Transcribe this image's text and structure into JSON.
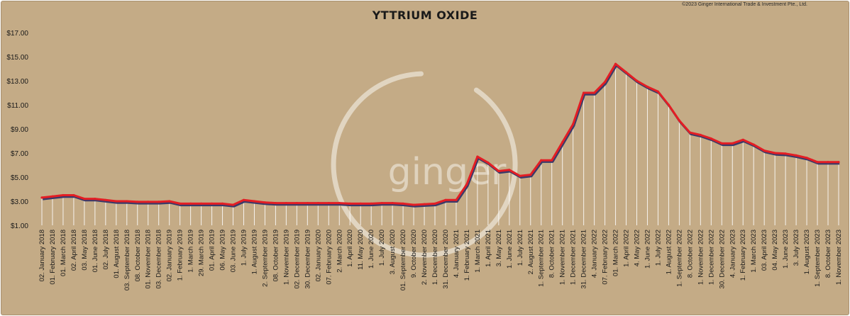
{
  "title": "YTTRIUM OXIDE",
  "copyright": "©2023 Ginger International Trade & Investment Pte., Ltd.",
  "watermark": "ginger",
  "colors": {
    "background": "#c4ab86",
    "line": "#e31e24",
    "shadow": "#3a3a6a",
    "drop_lines": "#ffffff",
    "watermark": "#e6dccb"
  },
  "chart_data": {
    "type": "line",
    "title": "YTTRIUM OXIDE",
    "xlabel": "",
    "ylabel": "",
    "ylim": [
      1,
      17
    ],
    "y_ticks": [
      "$1.00",
      "$3.00",
      "$5.00",
      "$7.00",
      "$9.00",
      "$11.00",
      "$13.00",
      "$15.00",
      "$17.00"
    ],
    "y_tick_values": [
      1,
      3,
      5,
      7,
      9,
      11,
      13,
      15,
      17
    ],
    "grid": false,
    "drop_lines": true,
    "categories": [
      "02. January 2018",
      "01. February 2018",
      "01. March 2018",
      "02. April 2018",
      "03. May 2018",
      "01. June 2018",
      "02. July 2018",
      "01. August 2018",
      "03. September 2018",
      "08. October 2018",
      "01. November 2018",
      "03. December 2018",
      "02. January 2019",
      "1. February 2019",
      "1. March 2019",
      "29. March 2019",
      "01. April 2019",
      "06. May 2019",
      "03. June 2019",
      "1. July 2019",
      "1. August 2019",
      "2. September 2019",
      "08. October 2019",
      "1. November 2019",
      "02. December 2019",
      "30. December 2019",
      "02. January 2020",
      "07. February 2020",
      "2. March 2020",
      "1. April 2020",
      "11. May 2020",
      "1. June 2020",
      "1. July 2020",
      "3. August 2020",
      "01. September 2020",
      "9. October 2020",
      "2. November 2020",
      "1. December 2020",
      "31. December 2020",
      "4. January 2021",
      "1. February 2021",
      "1. March 2021",
      "1. April 2021",
      "3. May 2021",
      "1. June 2021",
      "1. July 2021",
      "2. August 2021",
      "1. September 2021",
      "8. October 2021",
      "1. November 2021",
      "1. December 2021",
      "31. December 2021",
      "4. January 2022",
      "07. February 2022",
      "01. March 2022",
      "1. April 2022",
      "4. May 2022",
      "1. June 2022",
      "1. July 2022",
      "1. August 2022",
      "1. September 2022",
      "8. October 2022",
      "1. November 2022",
      "1. December 2022",
      "30. December 2022",
      "4. January 2023",
      "1. February 2023",
      "1. March 2023",
      "03. April 2023",
      "04. May 2023",
      "1. June 2023",
      "3. July 2023",
      "1. August 2023",
      "1. September 2023",
      "8. October 2023",
      "1. November 2023"
    ],
    "series": [
      {
        "values": [
          3.3,
          3.4,
          3.5,
          3.5,
          3.2,
          3.2,
          3.1,
          3.0,
          3.0,
          2.95,
          2.95,
          2.95,
          3.0,
          2.8,
          2.8,
          2.8,
          2.8,
          2.8,
          2.7,
          3.1,
          3.0,
          2.9,
          2.85,
          2.85,
          2.85,
          2.85,
          2.85,
          2.85,
          2.85,
          2.8,
          2.8,
          2.8,
          2.85,
          2.85,
          2.8,
          2.7,
          2.75,
          2.8,
          3.1,
          3.1,
          4.4,
          6.7,
          6.2,
          5.5,
          5.6,
          5.1,
          5.2,
          6.4,
          6.4,
          7.9,
          9.4,
          12.0,
          12.0,
          12.9,
          14.4,
          13.7,
          13.0,
          12.5,
          12.1,
          11.0,
          9.7,
          8.7,
          8.5,
          8.2,
          7.8,
          7.8,
          8.1,
          7.7,
          7.2,
          7.0,
          6.95,
          6.8,
          6.6,
          6.25,
          6.25,
          6.25
        ]
      }
    ]
  }
}
